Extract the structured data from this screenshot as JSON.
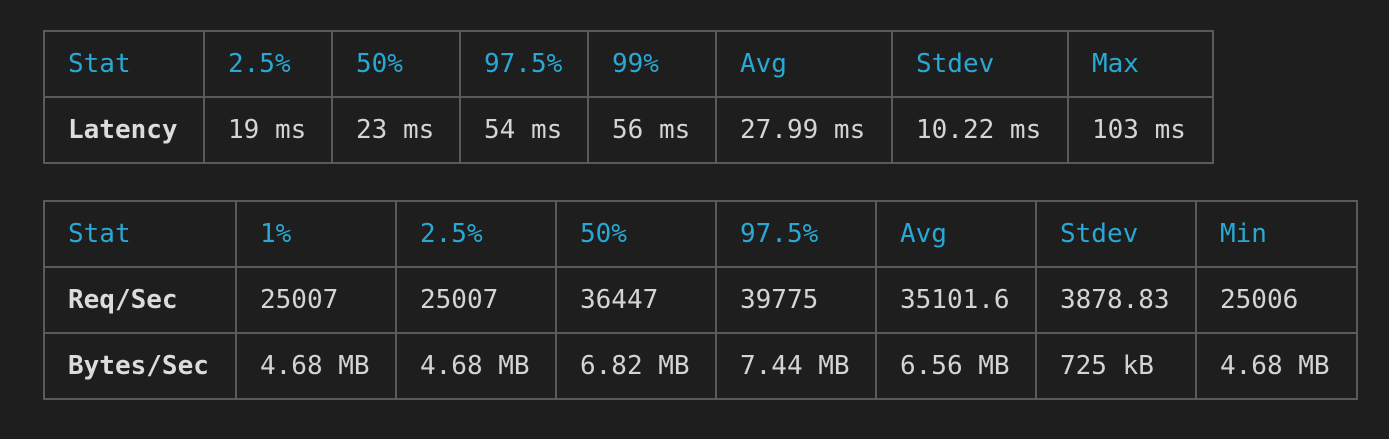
{
  "latency_table": {
    "headers": [
      "Stat",
      "2.5%",
      "50%",
      "97.5%",
      "99%",
      "Avg",
      "Stdev",
      "Max"
    ],
    "rows": [
      [
        "Latency",
        "19 ms",
        "23 ms",
        "54 ms",
        "56 ms",
        "27.99 ms",
        "10.22 ms",
        "103 ms"
      ]
    ]
  },
  "throughput_table": {
    "headers": [
      "Stat",
      "1%",
      "2.5%",
      "50%",
      "97.5%",
      "Avg",
      "Stdev",
      "Min"
    ],
    "rows": [
      [
        "Req/Sec",
        "25007",
        "25007",
        "36447",
        "39775",
        "35101.6",
        "3878.83",
        "25006"
      ],
      [
        "Bytes/Sec",
        "4.68 MB",
        "4.68 MB",
        "6.82 MB",
        "7.44 MB",
        "6.56 MB",
        "725 kB",
        "4.68 MB"
      ]
    ]
  },
  "colors": {
    "background": "#1e1e1e",
    "header_text": "#29a8d4",
    "body_text": "#d4d4d4",
    "border": "#5a5a5a"
  }
}
